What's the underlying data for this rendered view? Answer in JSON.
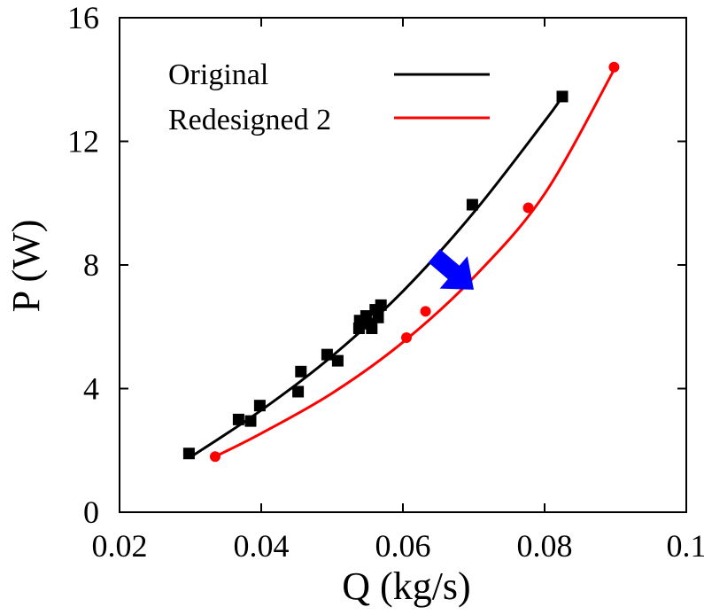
{
  "chart_data": {
    "type": "scatter",
    "xlabel": "Q (kg/s)",
    "ylabel": "P (W)",
    "xlim": [
      0.02,
      0.1
    ],
    "ylim": [
      0,
      16
    ],
    "x_ticks": [
      0.02,
      0.04,
      0.06,
      0.08,
      0.1
    ],
    "x_tick_labels": [
      "0.02",
      "0.04",
      "0.06",
      "0.08",
      "0.1"
    ],
    "y_ticks": [
      0,
      4,
      8,
      12,
      16
    ],
    "y_tick_labels": [
      "0",
      "4",
      "8",
      "12",
      "16"
    ],
    "grid": false,
    "legend_position": "top-left",
    "annotation": "arrow pointing from the Original curve toward the Redesigned 2 curve",
    "annotation_color": "#0000ff",
    "series": [
      {
        "name": "Original",
        "color": "#000000",
        "marker": "square",
        "points": [
          [
            0.0298,
            1.9
          ],
          [
            0.0368,
            3.0
          ],
          [
            0.0385,
            2.95
          ],
          [
            0.0398,
            3.45
          ],
          [
            0.0452,
            3.9
          ],
          [
            0.0456,
            4.55
          ],
          [
            0.0493,
            5.1
          ],
          [
            0.0508,
            4.9
          ],
          [
            0.0538,
            5.95
          ],
          [
            0.0539,
            6.2
          ],
          [
            0.0548,
            6.35
          ],
          [
            0.0552,
            6.1
          ],
          [
            0.0556,
            5.95
          ],
          [
            0.0561,
            6.55
          ],
          [
            0.0565,
            6.3
          ],
          [
            0.0569,
            6.7
          ],
          [
            0.0698,
            9.95
          ],
          [
            0.0825,
            13.45
          ]
        ],
        "fit": [
          [
            0.0298,
            1.75
          ],
          [
            0.04,
            3.3
          ],
          [
            0.05,
            5.05
          ],
          [
            0.06,
            7.15
          ],
          [
            0.07,
            9.7
          ],
          [
            0.08,
            12.65
          ],
          [
            0.0825,
            13.45
          ]
        ]
      },
      {
        "name": "Redesigned 2",
        "color": "#ff0000",
        "marker": "circle",
        "points": [
          [
            0.0335,
            1.8
          ],
          [
            0.0605,
            5.65
          ],
          [
            0.0632,
            6.5
          ],
          [
            0.0777,
            9.85
          ],
          [
            0.0898,
            14.4
          ]
        ],
        "fit": [
          [
            0.0335,
            1.8
          ],
          [
            0.04,
            2.55
          ],
          [
            0.05,
            3.85
          ],
          [
            0.06,
            5.5
          ],
          [
            0.07,
            7.6
          ],
          [
            0.08,
            10.3
          ],
          [
            0.09,
            14.4
          ]
        ]
      }
    ]
  }
}
